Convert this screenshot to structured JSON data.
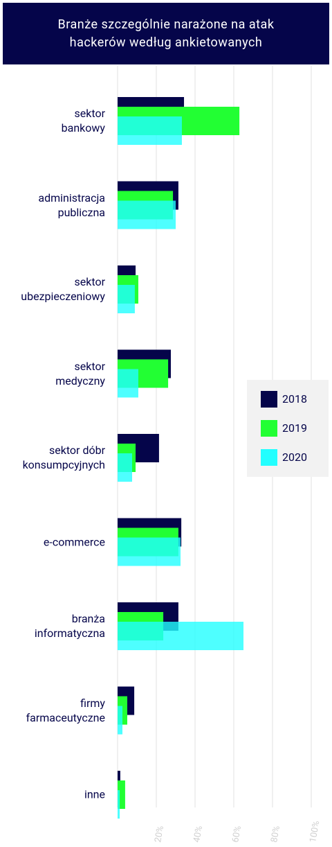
{
  "chart_data": {
    "type": "bar",
    "orientation": "horizontal",
    "title": "Branże szczególnie narażone na atak\nhackerów według ankietowanych",
    "categories": [
      "sektor\nbankowy",
      "administracja\npubliczna",
      "sektor\nubezpieczeniowy",
      "sektor\nmedyczny",
      "sektor dóbr\nkonsumpcyjnych",
      "e-commerce",
      "branża\ninformatyczna",
      "firmy\nfarmaceutyczne",
      "inne"
    ],
    "series": [
      {
        "name": "2018",
        "color": "#05054a",
        "values": [
          34.3,
          31.4,
          9.3,
          27.5,
          21.4,
          32.9,
          31.4,
          8.6,
          1.4
        ]
      },
      {
        "name": "2019",
        "color": "#22ff33",
        "values": [
          62.9,
          28.6,
          10.7,
          26.1,
          9.3,
          31.4,
          23.6,
          5.0,
          3.9
        ]
      },
      {
        "name": "2020",
        "color": "#22ffff",
        "values": [
          33.2,
          30.0,
          8.9,
          10.7,
          7.5,
          32.5,
          65.0,
          2.5,
          1.1
        ]
      }
    ],
    "xlim": [
      0,
      100
    ],
    "xticks": [
      {
        "value": 20,
        "label": "20%"
      },
      {
        "value": 40,
        "label": "40%"
      },
      {
        "value": 60,
        "label": "60%"
      },
      {
        "value": 80,
        "label": "80%"
      },
      {
        "value": 100,
        "label": "100%"
      }
    ],
    "grid": true,
    "legend": "right"
  }
}
